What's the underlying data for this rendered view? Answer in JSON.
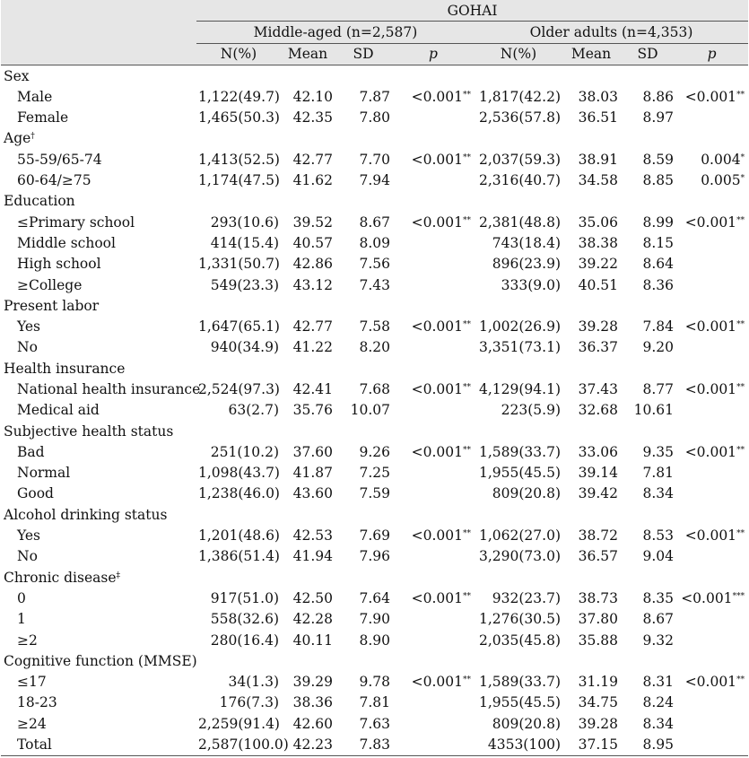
{
  "header": {
    "group": "GOHAI",
    "sub1": "Middle-aged (n=2,587)",
    "sub2": "Older adults (n=4,353)",
    "cols": [
      "N(%)",
      "Mean",
      "SD",
      "p",
      "N(%)",
      "Mean",
      "SD",
      "p"
    ]
  },
  "rows": [
    {
      "type": "cat",
      "label": "Sex",
      "sup": ""
    },
    {
      "type": "item",
      "label": "Male",
      "c": [
        "1,122(49.7)",
        "42.10",
        "7.87",
        "<0.001",
        "1,817(42.2)",
        "38.03",
        "8.86",
        "<0.001"
      ],
      "s": [
        "",
        "",
        "",
        "**",
        "",
        "",
        "",
        "**"
      ]
    },
    {
      "type": "item",
      "label": "Female",
      "c": [
        "1,465(50.3)",
        "42.35",
        "7.80",
        "",
        "2,536(57.8)",
        "36.51",
        "8.97",
        ""
      ],
      "s": [
        "",
        "",
        "",
        "",
        "",
        "",
        "",
        ""
      ]
    },
    {
      "type": "cat",
      "label": "Age",
      "sup": "†"
    },
    {
      "type": "item",
      "label": "55-59/65-74",
      "c": [
        "1,413(52.5)",
        "42.77",
        "7.70",
        "<0.001",
        "2,037(59.3)",
        "38.91",
        "8.59",
        "0.004"
      ],
      "s": [
        "",
        "",
        "",
        "**",
        "",
        "",
        "",
        "*"
      ]
    },
    {
      "type": "item",
      "label": "60-64/≥75",
      "c": [
        "1,174(47.5)",
        "41.62",
        "7.94",
        "",
        "2,316(40.7)",
        "34.58",
        "8.85",
        "0.005"
      ],
      "s": [
        "",
        "",
        "",
        "",
        "",
        "",
        "",
        "*"
      ]
    },
    {
      "type": "cat",
      "label": "Education",
      "sup": ""
    },
    {
      "type": "item",
      "label": "≤Primary school",
      "c": [
        "293(10.6)",
        "39.52",
        "8.67",
        "<0.001",
        "2,381(48.8)",
        "35.06",
        "8.99",
        "<0.001"
      ],
      "s": [
        "",
        "",
        "",
        "**",
        "",
        "",
        "",
        "**"
      ]
    },
    {
      "type": "item",
      "label": "Middle school",
      "c": [
        "414(15.4)",
        "40.57",
        "8.09",
        "",
        "743(18.4)",
        "38.38",
        "8.15",
        ""
      ],
      "s": [
        "",
        "",
        "",
        "",
        "",
        "",
        "",
        ""
      ]
    },
    {
      "type": "item",
      "label": "High school",
      "c": [
        "1,331(50.7)",
        "42.86",
        "7.56",
        "",
        "896(23.9)",
        "39.22",
        "8.64",
        ""
      ],
      "s": [
        "",
        "",
        "",
        "",
        "",
        "",
        "",
        ""
      ]
    },
    {
      "type": "item",
      "label": "≥College",
      "c": [
        "549(23.3)",
        "43.12",
        "7.43",
        "",
        "333(9.0)",
        "40.51",
        "8.36",
        ""
      ],
      "s": [
        "",
        "",
        "",
        "",
        "",
        "",
        "",
        ""
      ]
    },
    {
      "type": "cat",
      "label": "Present labor",
      "sup": ""
    },
    {
      "type": "item",
      "label": "Yes",
      "c": [
        "1,647(65.1)",
        "42.77",
        "7.58",
        "<0.001",
        "1,002(26.9)",
        "39.28",
        "7.84",
        "<0.001"
      ],
      "s": [
        "",
        "",
        "",
        "**",
        "",
        "",
        "",
        "**"
      ]
    },
    {
      "type": "item",
      "label": "No",
      "c": [
        "940(34.9)",
        "41.22",
        "8.20",
        "",
        "3,351(73.1)",
        "36.37",
        "9.20",
        ""
      ],
      "s": [
        "",
        "",
        "",
        "",
        "",
        "",
        "",
        ""
      ]
    },
    {
      "type": "cat",
      "label": "Health insurance",
      "sup": ""
    },
    {
      "type": "item",
      "label": "National health insurance",
      "c": [
        "2,524(97.3)",
        "42.41",
        "7.68",
        "<0.001",
        "4,129(94.1)",
        "37.43",
        "8.77",
        "<0.001"
      ],
      "s": [
        "",
        "",
        "",
        "**",
        "",
        "",
        "",
        "**"
      ]
    },
    {
      "type": "item",
      "label": "Medical aid",
      "c": [
        "63(2.7)",
        "35.76",
        "10.07",
        "",
        "223(5.9)",
        "32.68",
        "10.61",
        ""
      ],
      "s": [
        "",
        "",
        "",
        "",
        "",
        "",
        "",
        ""
      ]
    },
    {
      "type": "cat",
      "label": "Subjective health status",
      "sup": ""
    },
    {
      "type": "item",
      "label": "Bad",
      "c": [
        "251(10.2)",
        "37.60",
        "9.26",
        "<0.001",
        "1,589(33.7)",
        "33.06",
        "9.35",
        "<0.001"
      ],
      "s": [
        "",
        "",
        "",
        "**",
        "",
        "",
        "",
        "**"
      ]
    },
    {
      "type": "item",
      "label": "Normal",
      "c": [
        "1,098(43.7)",
        "41.87",
        "7.25",
        "",
        "1,955(45.5)",
        "39.14",
        "7.81",
        ""
      ],
      "s": [
        "",
        "",
        "",
        "",
        "",
        "",
        "",
        ""
      ]
    },
    {
      "type": "item",
      "label": "Good",
      "c": [
        "1,238(46.0)",
        "43.60",
        "7.59",
        "",
        "809(20.8)",
        "39.42",
        "8.34",
        ""
      ],
      "s": [
        "",
        "",
        "",
        "",
        "",
        "",
        "",
        ""
      ]
    },
    {
      "type": "cat",
      "label": "Alcohol drinking status",
      "sup": ""
    },
    {
      "type": "item",
      "label": "Yes",
      "c": [
        "1,201(48.6)",
        "42.53",
        "7.69",
        "<0.001",
        "1,062(27.0)",
        "38.72",
        "8.53",
        "<0.001"
      ],
      "s": [
        "",
        "",
        "",
        "**",
        "",
        "",
        "",
        "**"
      ]
    },
    {
      "type": "item",
      "label": "No",
      "c": [
        "1,386(51.4)",
        "41.94",
        "7.96",
        "",
        "3,290(73.0)",
        "36.57",
        "9.04",
        ""
      ],
      "s": [
        "",
        "",
        "",
        "",
        "",
        "",
        "",
        ""
      ]
    },
    {
      "type": "cat",
      "label": "Chronic disease",
      "sup": "‡"
    },
    {
      "type": "item",
      "label": "0",
      "c": [
        "917(51.0)",
        "42.50",
        "7.64",
        "<0.001",
        "932(23.7)",
        "38.73",
        "8.35",
        "<0.001"
      ],
      "s": [
        "",
        "",
        "",
        "**",
        "",
        "",
        "",
        "***"
      ]
    },
    {
      "type": "item",
      "label": "1",
      "c": [
        "558(32.6)",
        "42.28",
        "7.90",
        "",
        "1,276(30.5)",
        "37.80",
        "8.67",
        ""
      ],
      "s": [
        "",
        "",
        "",
        "",
        "",
        "",
        "",
        ""
      ]
    },
    {
      "type": "item",
      "label": "≥2",
      "c": [
        "280(16.4)",
        "40.11",
        "8.90",
        "",
        "2,035(45.8)",
        "35.88",
        "9.32",
        ""
      ],
      "s": [
        "",
        "",
        "",
        "",
        "",
        "",
        "",
        ""
      ]
    },
    {
      "type": "cat",
      "label": "Cognitive function (MMSE)",
      "sup": ""
    },
    {
      "type": "item",
      "label": "≤17",
      "c": [
        "34(1.3)",
        "39.29",
        "9.78",
        "<0.001",
        "1,589(33.7)",
        "31.19",
        "8.31",
        "<0.001"
      ],
      "s": [
        "",
        "",
        "",
        "**",
        "",
        "",
        "",
        "**"
      ]
    },
    {
      "type": "item",
      "label": "18-23",
      "c": [
        "176(7.3)",
        "38.36",
        "7.81",
        "",
        "1,955(45.5)",
        "34.75",
        "8.24",
        ""
      ],
      "s": [
        "",
        "",
        "",
        "",
        "",
        "",
        "",
        ""
      ]
    },
    {
      "type": "item",
      "label": "≥24",
      "c": [
        "2,259(91.4)",
        "42.60",
        "7.63",
        "",
        "809(20.8)",
        "39.28",
        "8.34",
        ""
      ],
      "s": [
        "",
        "",
        "",
        "",
        "",
        "",
        "",
        ""
      ]
    },
    {
      "type": "item",
      "label": "Total",
      "c": [
        "2,587(100.0)",
        "42.23",
        "7.83",
        "",
        "4353(100)",
        "37.15",
        "8.95",
        ""
      ],
      "s": [
        "",
        "",
        "",
        "",
        "",
        "",
        "",
        ""
      ]
    }
  ]
}
